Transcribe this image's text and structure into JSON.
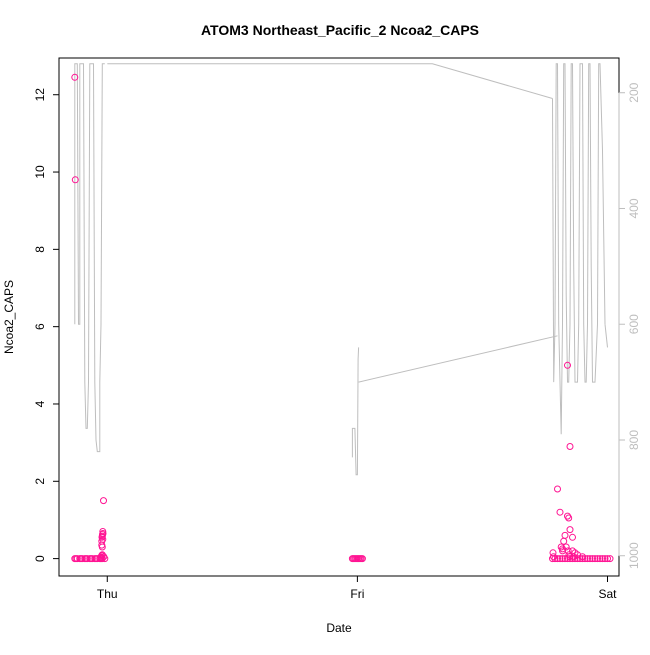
{
  "chart_data": {
    "type": "scatter",
    "title": "ATOM3 Northeast_Pacific_2 Ncoa2_CAPS",
    "xlabel": "Date",
    "ylabel": "Ncoa2_CAPS",
    "x_ticks": [
      "Thu",
      "Fri",
      "Sat"
    ],
    "x_tick_values": [
      1.0,
      2.0,
      3.0
    ],
    "xlim": [
      0.807,
      3.046
    ],
    "ylim": [
      -0.45,
      12.95
    ],
    "y_ticks": [
      0,
      2,
      4,
      6,
      8,
      10,
      12
    ],
    "y2_ticks": [
      200,
      400,
      600,
      800,
      1000
    ],
    "y2lim": [
      1035,
      140
    ],
    "y2_reversed": true,
    "grid": false,
    "legend": "none",
    "colors": {
      "points": "#ff1493",
      "secondary_line": "#bebebe",
      "axis": "#000000",
      "secondary_axis": "#bebebe"
    },
    "series": [
      {
        "kind": "points",
        "x": [
          0.87,
          0.88,
          0.89,
          0.9,
          0.91,
          0.92,
          0.93,
          0.94,
          0.95,
          0.96,
          0.97,
          0.98,
          0.99,
          0.875,
          0.895,
          0.915,
          0.935,
          0.955,
          0.975,
          0.87,
          0.872,
          0.975,
          0.978,
          0.98,
          0.978,
          0.978,
          0.979,
          0.98,
          0.981,
          0.982,
          0.983,
          0.982,
          0.985,
          0.98,
          0.986,
          0.975,
          0.976,
          0.977,
          1.98,
          1.985,
          1.99,
          1.995,
          2.0,
          2.005,
          2.01,
          2.015,
          2.02,
          2.78,
          2.79,
          2.8,
          2.81,
          2.82,
          2.83,
          2.84,
          2.85,
          2.86,
          2.87,
          2.88,
          2.89,
          2.9,
          2.91,
          2.92,
          2.93,
          2.94,
          2.95,
          2.96,
          2.97,
          2.98,
          2.99,
          3.0,
          3.01,
          2.782,
          2.784,
          2.8,
          2.81,
          2.815,
          2.82,
          2.825,
          2.83,
          2.835,
          2.84,
          2.845,
          2.85,
          2.86,
          2.87,
          2.88,
          2.9,
          2.82,
          2.84,
          2.843,
          2.846,
          2.849,
          2.85,
          2.86,
          2.865
        ],
        "y": [
          0,
          0,
          0,
          0,
          0,
          0,
          0,
          0,
          0,
          0,
          0,
          0,
          0,
          0,
          0,
          0,
          0,
          0,
          0,
          12.45,
          9.8,
          0.05,
          0.08,
          0.1,
          0.35,
          0.45,
          0.55,
          0.58,
          0.62,
          0.7,
          0.65,
          0.5,
          1.5,
          0.3,
          0.05,
          0.0,
          0.02,
          0.03,
          0,
          0,
          0,
          0,
          0,
          0,
          0,
          0,
          0,
          0,
          0,
          0,
          0,
          0,
          0,
          0,
          0,
          0,
          0,
          0,
          0,
          0,
          0,
          0,
          0,
          0,
          0,
          0,
          0,
          0,
          0,
          0,
          0,
          0.15,
          0.05,
          1.8,
          1.2,
          0.3,
          0.25,
          0.45,
          0.6,
          0.3,
          1.1,
          1.05,
          0.75,
          0.55,
          0.15,
          0.1,
          0.05,
          0.2,
          5.0,
          0.2,
          0.1,
          0.05,
          2.9,
          0.2,
          0.05
        ]
      },
      {
        "kind": "line",
        "axis": "secondary",
        "name": "",
        "segments": [
          [
            [
              0.87,
              600
            ],
            [
              0.87,
              150
            ],
            [
              0.88,
              150
            ],
            [
              0.885,
              600
            ],
            [
              0.89,
              600
            ],
            [
              0.89,
              150
            ],
            [
              0.905,
              150
            ],
            [
              0.91,
              700
            ],
            [
              0.915,
              780
            ],
            [
              0.92,
              780
            ],
            [
              0.925,
              700
            ],
            [
              0.93,
              150
            ],
            [
              0.945,
              150
            ],
            [
              0.95,
              700
            ],
            [
              0.955,
              800
            ],
            [
              0.96,
              820
            ],
            [
              0.965,
              820
            ],
            [
              0.97,
              820
            ],
            [
              0.97,
              700
            ],
            [
              0.975,
              600
            ],
            [
              0.98,
              150
            ],
            [
              0.99,
              150
            ]
          ],
          [
            [
              1.0,
              150
            ],
            [
              2.3,
              150
            ],
            [
              2.78,
              210
            ]
          ],
          [
            [
              1.98,
              830
            ],
            [
              1.98,
              780
            ],
            [
              1.985,
              780
            ],
            [
              1.99,
              780
            ],
            [
              1.995,
              860
            ],
            [
              2.0,
              860
            ],
            [
              2.003,
              660
            ],
            [
              2.005,
              640
            ]
          ],
          [
            [
              2.005,
              700
            ],
            [
              2.8,
              620
            ]
          ],
          [
            [
              2.78,
              210
            ],
            [
              2.785,
              700
            ],
            [
              2.79,
              600
            ],
            [
              2.795,
              150
            ],
            [
              2.8,
              150
            ],
            [
              2.805,
              600
            ],
            [
              2.81,
              700
            ],
            [
              2.815,
              790
            ],
            [
              2.82,
              600
            ],
            [
              2.825,
              150
            ],
            [
              2.83,
              150
            ],
            [
              2.835,
              550
            ],
            [
              2.84,
              700
            ],
            [
              2.845,
              700
            ],
            [
              2.85,
              600
            ],
            [
              2.855,
              150
            ],
            [
              2.86,
              150
            ],
            [
              2.865,
              500
            ],
            [
              2.87,
              700
            ],
            [
              2.88,
              700
            ],
            [
              2.885,
              600
            ],
            [
              2.89,
              150
            ],
            [
              2.9,
              150
            ],
            [
              2.905,
              600
            ],
            [
              2.91,
              700
            ],
            [
              2.915,
              700
            ],
            [
              2.92,
              600
            ],
            [
              2.925,
              150
            ],
            [
              2.93,
              150
            ],
            [
              2.935,
              500
            ],
            [
              2.94,
              700
            ],
            [
              2.95,
              700
            ],
            [
              2.96,
              600
            ],
            [
              2.965,
              150
            ],
            [
              2.97,
              150
            ],
            [
              2.98,
              300
            ],
            [
              2.99,
              600
            ]
          ],
          [
            [
              2.99,
              600
            ],
            [
              3.0,
              640
            ],
            [
              3.0,
              640
            ]
          ]
        ]
      }
    ]
  }
}
